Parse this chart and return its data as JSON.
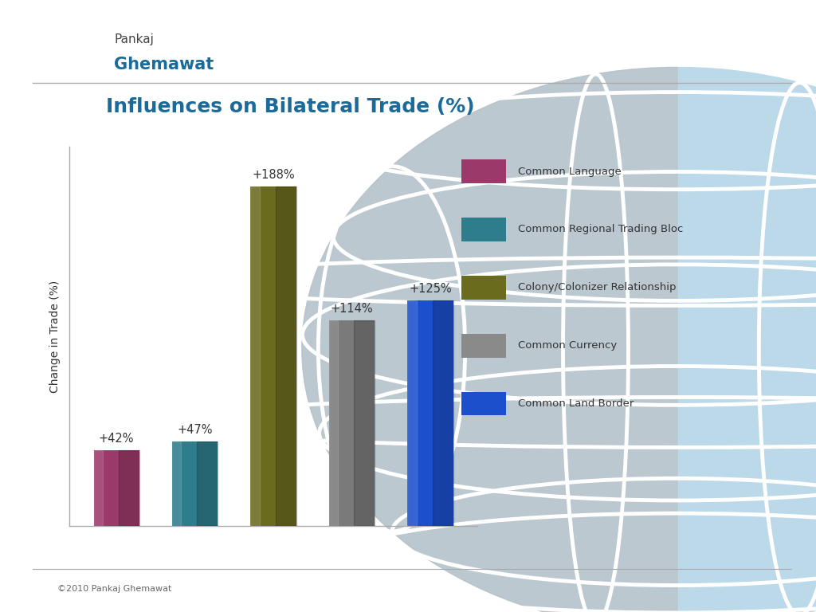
{
  "title": "Influences on Bilateral Trade (%)",
  "ylabel": "Change in Trade (%)",
  "values": [
    42,
    47,
    188,
    114,
    125
  ],
  "labels": [
    "+42%",
    "+47%",
    "+188%",
    "+114%",
    "+125%"
  ],
  "bar_colors": [
    "#9B3A6A",
    "#2E7D8C",
    "#6B6B1E",
    "#7A7A7A",
    "#1B4FCB"
  ],
  "legend_labels": [
    "Common Language",
    "Common Regional Trading Bloc",
    "Colony/Colonizer Relationship",
    "Common Currency",
    "Common Land Border"
  ],
  "legend_colors": [
    "#9B3A6A",
    "#2E7D8C",
    "#6B6B1E",
    "#8A8A8A",
    "#1B4FCB"
  ],
  "title_color": "#1A6A9A",
  "background_color": "#FFFFFF",
  "footer_text": "©2010 Pankaj Ghemawat",
  "ylim": [
    0,
    210
  ],
  "globe_light_blue": "#BCD9EA",
  "globe_gray": "#BBBBBB",
  "globe_line_color": "#FFFFFF"
}
